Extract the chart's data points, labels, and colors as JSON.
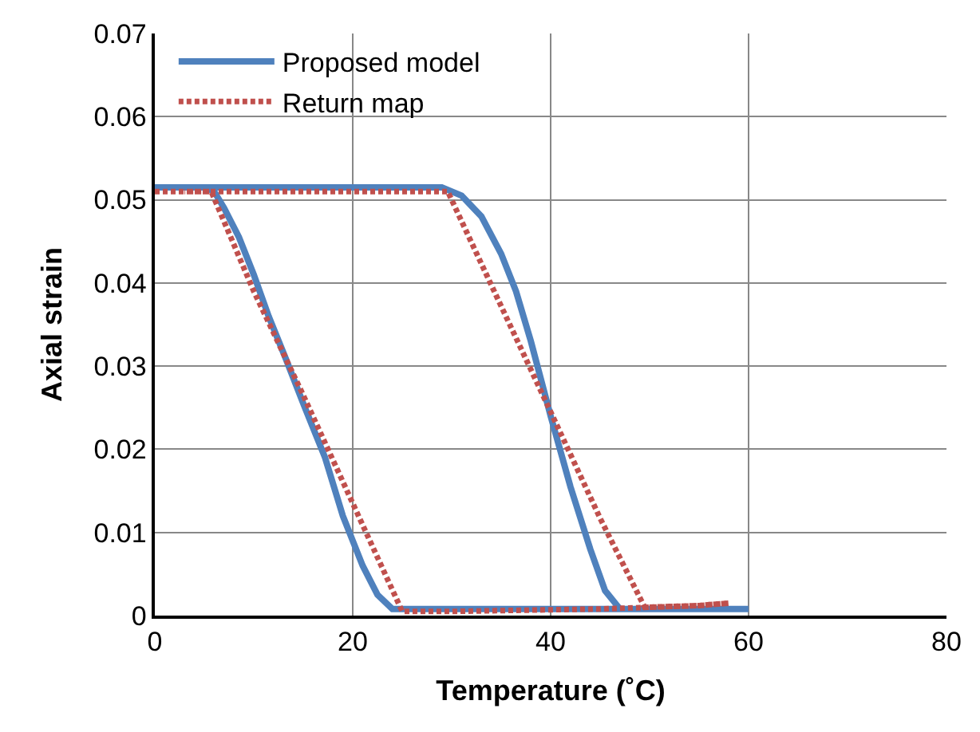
{
  "chart_data": {
    "type": "line",
    "xlabel": "Temperature (˚C)",
    "ylabel": "Axial strain",
    "xlim": [
      0,
      80
    ],
    "xticks": [
      0,
      20,
      40,
      60,
      80
    ],
    "ylim": [
      0,
      0.07
    ],
    "yticks": [
      0,
      0.01,
      0.02,
      0.03,
      0.04,
      0.05,
      0.06,
      0.07
    ],
    "grid": true,
    "legend": "top left",
    "marker": "none",
    "series": [
      {
        "name": "Proposed model",
        "color": "#4f81bd",
        "line_style": "solid",
        "x": [
          0,
          10,
          20,
          29,
          31,
          33,
          35,
          36.5,
          38,
          40,
          42,
          44,
          45.5,
          47,
          50,
          55,
          60,
          50,
          40,
          30,
          24,
          22.5,
          21,
          19,
          17.2,
          15,
          13.2,
          11.5,
          10,
          8.5,
          7,
          6,
          5,
          2.5
        ],
        "values": [
          0.0515,
          0.0515,
          0.0515,
          0.0515,
          0.0505,
          0.048,
          0.0435,
          0.039,
          0.033,
          0.024,
          0.0155,
          0.008,
          0.003,
          0.0008,
          0.0008,
          0.0008,
          0.0008,
          0.0008,
          0.0008,
          0.0008,
          0.0008,
          0.0025,
          0.006,
          0.012,
          0.019,
          0.0255,
          0.031,
          0.036,
          0.041,
          0.0455,
          0.049,
          0.051,
          0.0515,
          0.0515
        ]
      },
      {
        "name": "Return map",
        "color": "#c0504d",
        "line_style": "dotted",
        "x": [
          0,
          10,
          20,
          29.6,
          35,
          40,
          45,
          49.5,
          55,
          58,
          55,
          50,
          45,
          40,
          35,
          30,
          25,
          20,
          15,
          10,
          5.7,
          3
        ],
        "values": [
          0.051,
          0.051,
          0.051,
          0.051,
          0.0372,
          0.0245,
          0.0117,
          0.001,
          0.0012,
          0.0015,
          0.0012,
          0.001,
          0.0008,
          0.0007,
          0.0006,
          0.0005,
          0.0005,
          0.0135,
          0.0265,
          0.039,
          0.051,
          0.051
        ]
      }
    ]
  }
}
